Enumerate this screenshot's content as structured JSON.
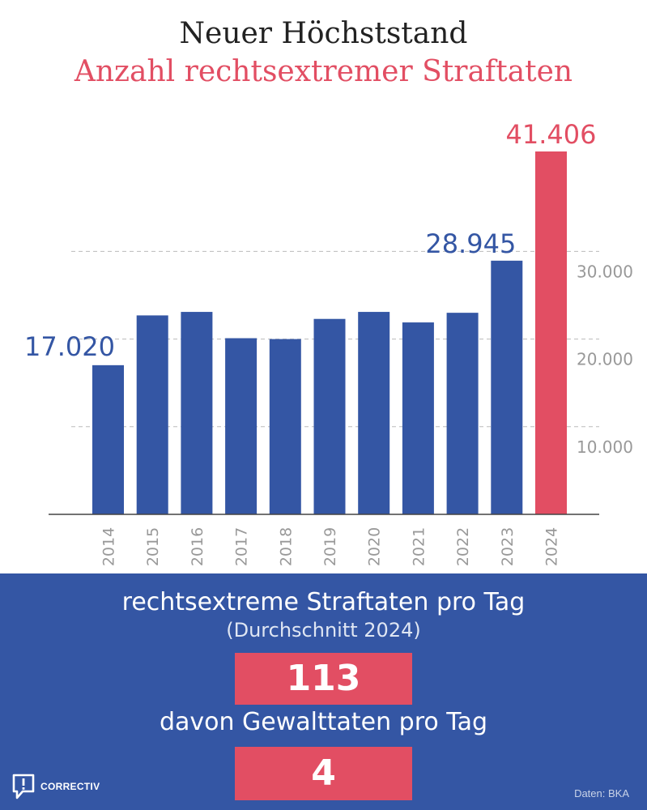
{
  "colors": {
    "blue": "#3456a4",
    "red": "#e24e63",
    "axis": "#444444",
    "grid": "#bbbbbb",
    "tick_text": "#999999"
  },
  "chart_data": {
    "type": "bar",
    "title": "Neuer Höchststand",
    "subtitle": "Anzahl rechtsextremer Straftaten",
    "categories": [
      "2014",
      "2015",
      "2016",
      "2017",
      "2018",
      "2019",
      "2020",
      "2021",
      "2022",
      "2023",
      "2024"
    ],
    "values": [
      17020,
      22700,
      23100,
      20100,
      20000,
      22300,
      23100,
      21900,
      23000,
      28945,
      41406
    ],
    "value_labels": [
      "17.020",
      "",
      "",
      "",
      "",
      "",
      "",
      "",
      "",
      "28.945",
      "41.406"
    ],
    "highlight_index": 10,
    "y_ticks": [
      10000,
      20000,
      30000
    ],
    "y_tick_labels": [
      "10.000",
      "20.000",
      "30.000"
    ],
    "ylim": [
      0,
      42000
    ],
    "grid": "dashed horizontal at ticks",
    "legend": "none",
    "y_axis_position": "right"
  },
  "stats": {
    "per_day_label": "rechtsextreme Straftaten pro Tag",
    "per_day_note": "(Durchschnitt 2024)",
    "per_day_value": "113",
    "violent_label": "davon Gewalttaten pro Tag",
    "violent_value": "4"
  },
  "branding": {
    "logo_text": "CORRECTIV",
    "source": "Daten: BKA"
  }
}
